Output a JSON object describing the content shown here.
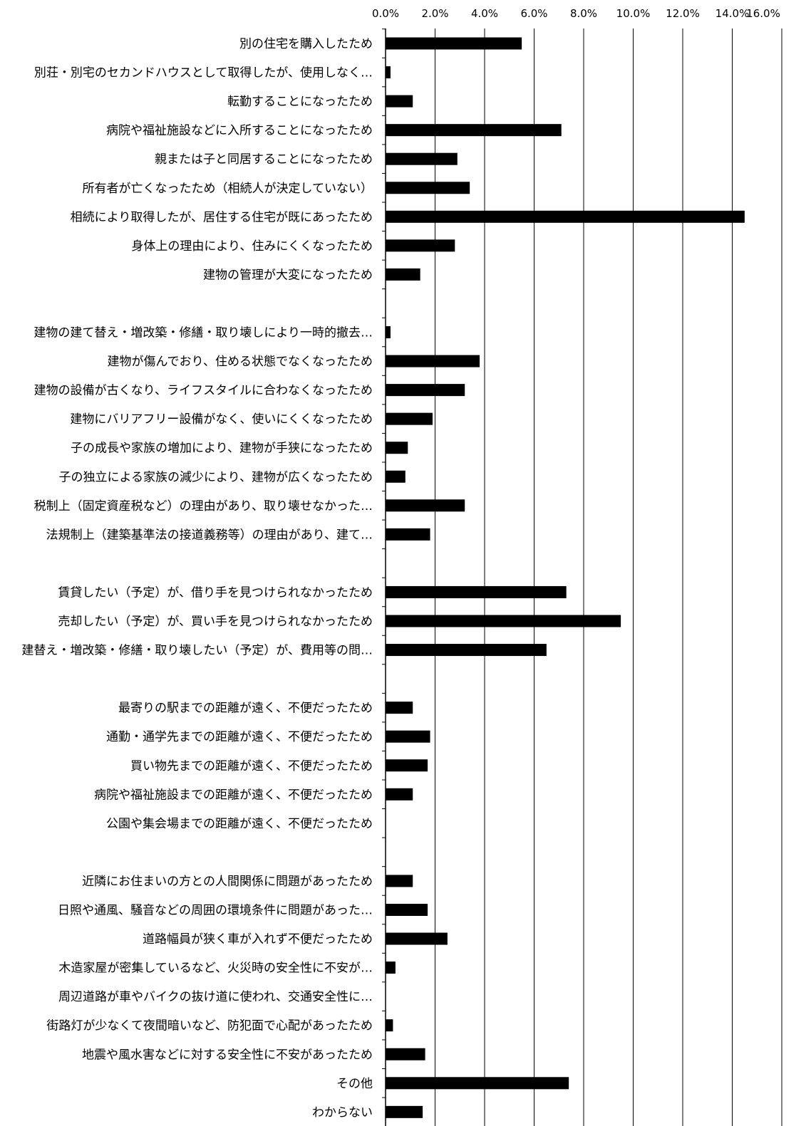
{
  "chart_data": {
    "type": "bar",
    "orientation": "horizontal",
    "title": "",
    "xlabel": "",
    "ylabel": "",
    "xlim": [
      0,
      16
    ],
    "x_ticks": [
      "0.0%",
      "2.0%",
      "4.0%",
      "6.0%",
      "8.0%",
      "10.0%",
      "12.0%",
      "14.0%",
      "16.0%"
    ],
    "value_unit": "%",
    "grid": "vertical lines",
    "legend": "none",
    "bar_color": "#000000",
    "rows": [
      {
        "label": "別の住宅を購入したため",
        "value": 5.5
      },
      {
        "label": "別荘・別宅のセカンドハウスとして取得したが、使用しなく…",
        "value": 0.2
      },
      {
        "label": "転勤することになったため",
        "value": 1.1
      },
      {
        "label": "病院や福祉施設などに入所することになったため",
        "value": 7.1
      },
      {
        "label": "親または子と同居することになったため",
        "value": 2.9
      },
      {
        "label": "所有者が亡くなったため（相続人が決定していない）",
        "value": 3.4
      },
      {
        "label": "相続により取得したが、居住する住宅が既にあったため",
        "value": 14.5
      },
      {
        "label": "身体上の理由により、住みにくくなったため",
        "value": 2.8
      },
      {
        "label": "建物の管理が大変になったため",
        "value": 1.4
      },
      {
        "label": "",
        "value": null
      },
      {
        "label": "建物の建て替え・増改築・修繕・取り壊しにより一時的撤去…",
        "value": 0.2
      },
      {
        "label": "建物が傷んでおり、住める状態でなくなったため",
        "value": 3.8
      },
      {
        "label": "建物の設備が古くなり、ライフスタイルに合わなくなったため",
        "value": 3.2
      },
      {
        "label": "建物にバリアフリー設備がなく、使いにくくなったため",
        "value": 1.9
      },
      {
        "label": "子の成長や家族の増加により、建物が手狭になったため",
        "value": 0.9
      },
      {
        "label": "子の独立による家族の減少により、建物が広くなったため",
        "value": 0.8
      },
      {
        "label": "税制上（固定資産税など）の理由があり、取り壊せなかった…",
        "value": 3.2
      },
      {
        "label": "法規制上（建築基準法の接道義務等）の理由があり、建て…",
        "value": 1.8
      },
      {
        "label": "",
        "value": null
      },
      {
        "label": "賃貸したい（予定）が、借り手を見つけられなかったため",
        "value": 7.3
      },
      {
        "label": "売却したい（予定）が、買い手を見つけられなかったため",
        "value": 9.5
      },
      {
        "label": "建替え・増改築・修繕・取り壊したい（予定）が、費用等の問…",
        "value": 6.5
      },
      {
        "label": "",
        "value": null
      },
      {
        "label": "最寄りの駅までの距離が遠く、不便だったため",
        "value": 1.1
      },
      {
        "label": "通勤・通学先までの距離が遠く、不便だったため",
        "value": 1.8
      },
      {
        "label": "買い物先までの距離が遠く、不便だったため",
        "value": 1.7
      },
      {
        "label": "病院や福祉施設までの距離が遠く、不便だったため",
        "value": 1.1
      },
      {
        "label": "公園や集会場までの距離が遠く、不便だったため",
        "value": 0
      },
      {
        "label": "",
        "value": null
      },
      {
        "label": "近隣にお住まいの方との人間関係に問題があったため",
        "value": 1.1
      },
      {
        "label": "日照や通風、騒音などの周囲の環境条件に問題があった…",
        "value": 1.7
      },
      {
        "label": "道路幅員が狭く車が入れず不便だったため",
        "value": 2.5
      },
      {
        "label": "木造家屋が密集しているなど、火災時の安全性に不安が…",
        "value": 0.4
      },
      {
        "label": "周辺道路が車やバイクの抜け道に使われ、交通安全性に…",
        "value": 0
      },
      {
        "label": "街路灯が少なくて夜間暗いなど、防犯面で心配があったため",
        "value": 0.3
      },
      {
        "label": "地震や風水害などに対する安全性に不安があったため",
        "value": 1.6
      },
      {
        "label": "その他",
        "value": 7.4
      },
      {
        "label": "わからない",
        "value": 1.5
      }
    ]
  }
}
